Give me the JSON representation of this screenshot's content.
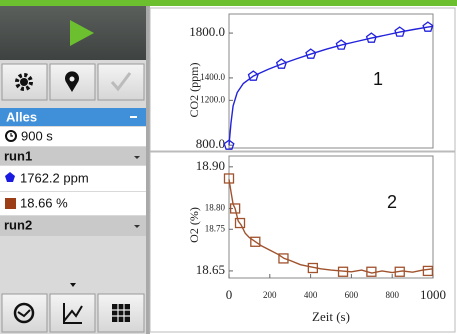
{
  "sidebar": {
    "meter_set": "Alles",
    "duration": "900 s",
    "runs": [
      {
        "name": "run1",
        "readings": [
          "1762.2 ppm",
          "18.66 %"
        ]
      },
      {
        "name": "run2"
      }
    ]
  },
  "chart_data": [
    {
      "type": "line",
      "y_label": "CO2 (ppm)",
      "annotations": [
        "1"
      ],
      "xlim": [
        0,
        1000
      ],
      "ylim": [
        775,
        1970
      ],
      "yticks": [
        {
          "value": 800,
          "label": "800.0"
        },
        {
          "value": 1200,
          "label": "1200.0"
        },
        {
          "value": 1400,
          "label": "1400.0"
        },
        {
          "value": 1800,
          "label": "1800.0"
        }
      ],
      "series": [
        {
          "color": "#2222dd",
          "x": [
            0,
            10,
            20,
            40,
            70,
            119,
            190,
            257,
            330,
            401,
            475,
            550,
            625,
            698,
            770,
            837,
            905,
            975,
            1000
          ],
          "values": [
            800,
            1000,
            1150,
            1270,
            1350,
            1416,
            1475,
            1523,
            1570,
            1612,
            1655,
            1693,
            1725,
            1755,
            1783,
            1809,
            1832,
            1853,
            1860
          ]
        },
        {
          "color": "#2222dd",
          "marker": "pentagon",
          "x": [
            0,
            119,
            257,
            401,
            550,
            698,
            837,
            975
          ],
          "values": [
            800,
            1416,
            1523,
            1612,
            1693,
            1755,
            1809,
            1853
          ]
        }
      ]
    },
    {
      "type": "line",
      "y_label": "O2 (%)",
      "x_label": "Zeit (s)",
      "annotations": [
        "2"
      ],
      "xlim": [
        0,
        1000
      ],
      "ylim": [
        18.633,
        18.926
      ],
      "xticks": [
        0,
        200,
        400,
        600,
        800,
        1000
      ],
      "yticks": [
        18.65,
        18.75,
        {
          "value": 18.8,
          "label": "18.80"
        },
        {
          "value": 18.9,
          "label": "18.90"
        }
      ],
      "series": [
        {
          "color": "#a0522d",
          "x": [
            0,
            10,
            20,
            30,
            45,
            60,
            80,
            100,
            130,
            160,
            200,
            240,
            270,
            300,
            350,
            400,
            450,
            500,
            550,
            600,
            650,
            700,
            750,
            800,
            850,
            900,
            950,
            1000
          ],
          "values": [
            18.87,
            18.84,
            18.81,
            18.8,
            18.77,
            18.76,
            18.74,
            18.73,
            18.72,
            18.71,
            18.7,
            18.69,
            18.68,
            18.675,
            18.665,
            18.66,
            18.655,
            18.652,
            18.65,
            18.648,
            18.652,
            18.645,
            18.65,
            18.646,
            18.65,
            18.647,
            18.652,
            18.655
          ]
        },
        {
          "color": "#a0522d",
          "marker": "square",
          "x": [
            0,
            30,
            54,
            129,
            267,
            411,
            559,
            698,
            837,
            975
          ],
          "values": [
            18.872,
            18.8,
            18.765,
            18.72,
            18.68,
            18.657,
            18.648,
            18.648,
            18.648,
            18.65
          ]
        }
      ]
    }
  ]
}
